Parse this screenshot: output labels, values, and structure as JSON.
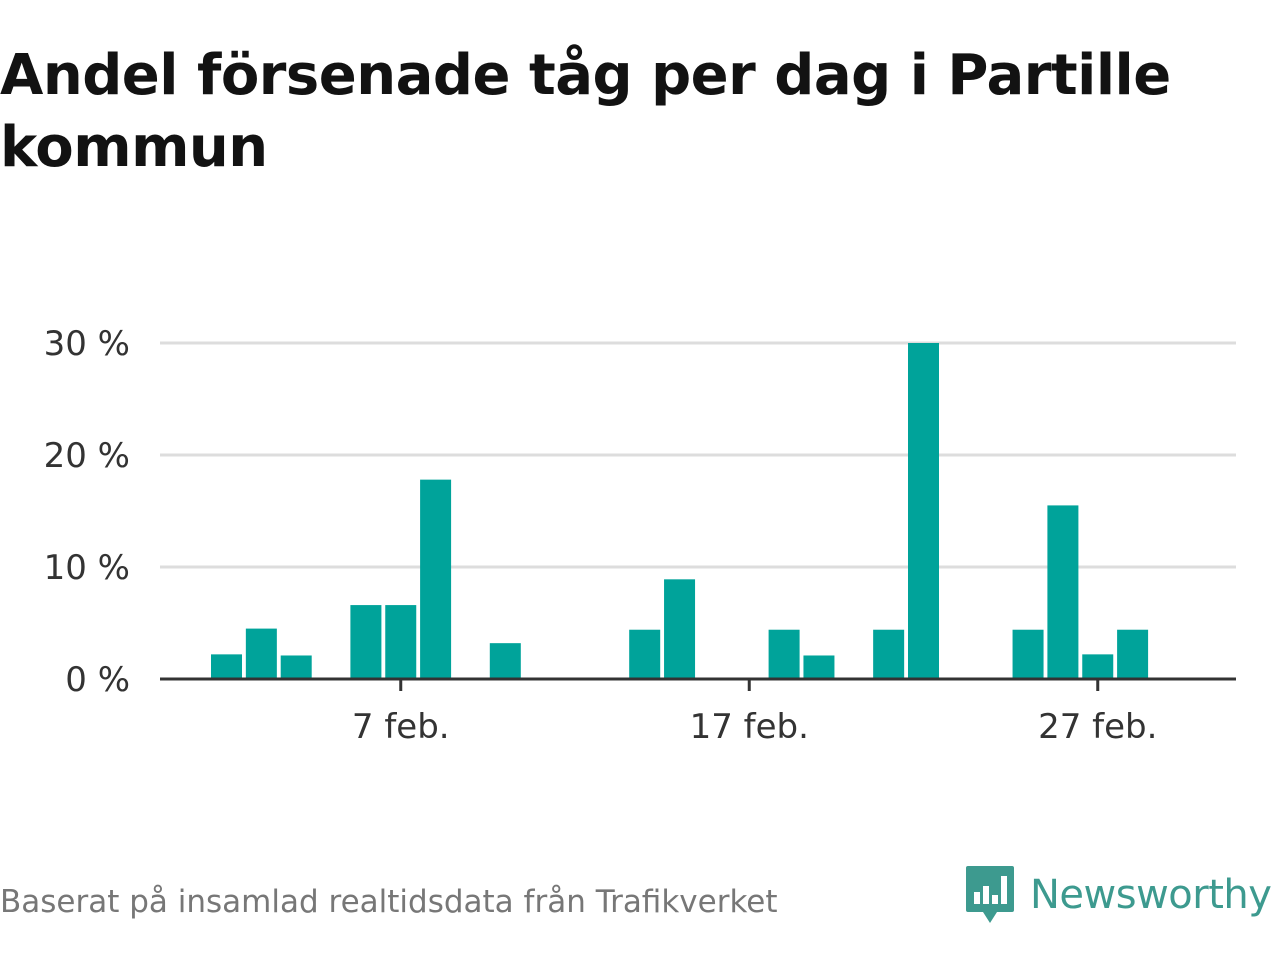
{
  "chart_data": {
    "type": "bar",
    "title": "Andel försenade tåg per dag i Partille kommun",
    "xlabel": "",
    "ylabel": "",
    "x_tick_labels": [
      {
        "day": 7,
        "label": "7 feb."
      },
      {
        "day": 17,
        "label": "17 feb."
      },
      {
        "day": 27,
        "label": "27 feb."
      }
    ],
    "y_tick_labels": [
      "0 %",
      "10 %",
      "20 %",
      "30 %"
    ],
    "y_ticks": [
      0,
      10,
      20,
      30
    ],
    "ylim": [
      0,
      30
    ],
    "xlim": [
      0,
      31
    ],
    "grid": true,
    "bar_color": "#00a39a",
    "days": [
      2,
      3,
      4,
      6,
      7,
      8,
      10,
      14,
      15,
      18,
      19,
      21,
      22,
      25,
      26,
      27,
      28
    ],
    "values": [
      2.2,
      4.5,
      2.1,
      6.6,
      6.6,
      17.8,
      3.2,
      4.4,
      8.9,
      4.4,
      2.1,
      4.4,
      30.0,
      4.4,
      15.5,
      2.2,
      4.4
    ]
  },
  "footer": {
    "source": "Baserat på insamlad realtidsdata från Trafikverket"
  },
  "brand": {
    "name": "Newsworthy",
    "icon": "newsworthy-logo-icon",
    "color": "#3d9a8f"
  }
}
